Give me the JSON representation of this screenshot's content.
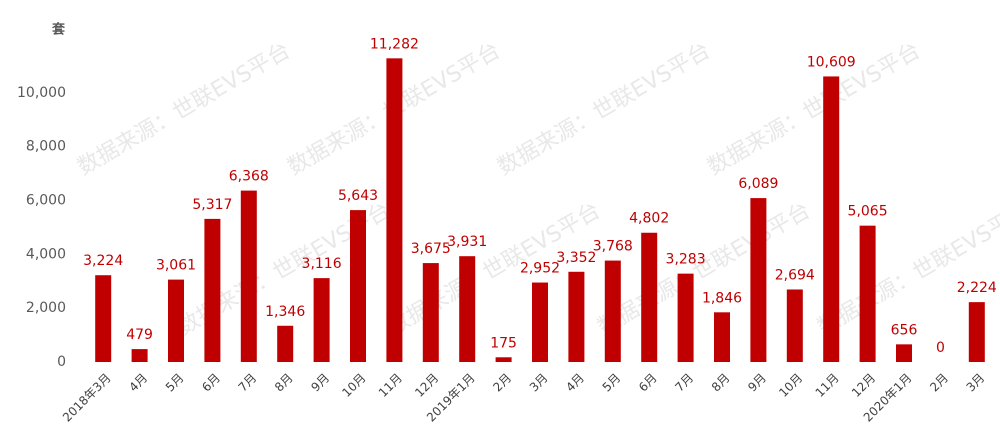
{
  "chart_data": {
    "type": "bar",
    "y_unit": "套",
    "watermark": "数据来源：世联EVS平台",
    "categories": [
      "2018年3月",
      "4月",
      "5月",
      "6月",
      "7月",
      "8月",
      "9月",
      "10月",
      "11月",
      "12月",
      "2019年1月",
      "2月",
      "3月",
      "4月",
      "5月",
      "6月",
      "7月",
      "8月",
      "9月",
      "10月",
      "11月",
      "12月",
      "2020年1月",
      "2月",
      "3月"
    ],
    "values": [
      3224,
      479,
      3061,
      5317,
      6368,
      1346,
      3116,
      5643,
      11282,
      3675,
      3931,
      175,
      2952,
      3352,
      3768,
      4802,
      3283,
      1846,
      6089,
      2694,
      10609,
      5065,
      656,
      0,
      2224
    ],
    "value_labels": [
      "3,224",
      "479",
      "3,061",
      "5,317",
      "6,368",
      "1,346",
      "3,116",
      "5,643",
      "11,282",
      "3,675",
      "3,931",
      "175",
      "2,952",
      "3,352",
      "3,768",
      "4,802",
      "3,283",
      "1,846",
      "6,089",
      "2,694",
      "10,609",
      "5,065",
      "656",
      "0",
      "2,224"
    ],
    "color": "#c00000",
    "ylim": [
      0,
      12000
    ],
    "yticks": [
      0,
      {
        "value": 2000,
        "label": "2,000"
      },
      {
        "value": 4000,
        "label": "4,000"
      },
      {
        "value": 6000,
        "label": "6,000"
      },
      {
        "value": 8000,
        "label": "8,000"
      },
      {
        "value": 10000,
        "label": "10,000"
      }
    ],
    "grid": false
  }
}
